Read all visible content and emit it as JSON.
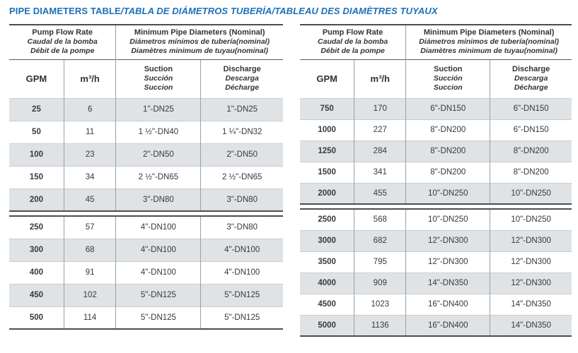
{
  "title": {
    "english": "PIPE DIAMETERS TABLE",
    "translations": "/TABLA DE DIÁMETROS TUBERÍA/TABLEAU DES DIAMÈTRES TUYAUX"
  },
  "colors": {
    "title_blue": "#1c70b8",
    "row_shading": "#dfe3e6",
    "dark_border": "#4c4d4f",
    "light_border": "#c9cdd0",
    "vertical_border": "#9ba0a4",
    "text_dark": "#39393b"
  },
  "header": {
    "flow_group": [
      "Pump Flow Rate",
      "Caudal de la bomba",
      "Débit de la pompe"
    ],
    "diameter_group": [
      "Minimum Pipe Diameters (Nominal)",
      "Diámetros mínimos de tubería(nominal)",
      "Diamètres minimum de tuyau(nominal)"
    ],
    "col_gpm": "GPM",
    "col_m3h": "m³/h",
    "col_suction": [
      "Suction",
      "Succión",
      "Succion"
    ],
    "col_discharge": [
      "Discharge",
      "Descarga",
      "Décharge"
    ]
  },
  "left_table": {
    "section1": [
      [
        "25",
        "6",
        "1\"-DN25",
        "1\"-DN25"
      ],
      [
        "50",
        "11",
        "1 ½\"-DN40",
        "1 ¼\"-DN32"
      ],
      [
        "100",
        "23",
        "2\"-DN50",
        "2\"-DN50"
      ],
      [
        "150",
        "34",
        "2 ½\"-DN65",
        "2 ½\"-DN65"
      ],
      [
        "200",
        "45",
        "3\"-DN80",
        "3\"-DN80"
      ]
    ],
    "section2": [
      [
        "250",
        "57",
        "4\"-DN100",
        "3\"-DN80"
      ],
      [
        "300",
        "68",
        "4\"-DN100",
        "4\"-DN100"
      ],
      [
        "400",
        "91",
        "4\"-DN100",
        "4\"-DN100"
      ],
      [
        "450",
        "102",
        "5\"-DN125",
        "5\"-DN125"
      ],
      [
        "500",
        "114",
        "5\"-DN125",
        "5\"-DN125"
      ]
    ]
  },
  "right_table": {
    "section1": [
      [
        "750",
        "170",
        "6\"-DN150",
        "6\"-DN150"
      ],
      [
        "1000",
        "227",
        "8\"-DN200",
        "6\"-DN150"
      ],
      [
        "1250",
        "284",
        "8\"-DN200",
        "8\"-DN200"
      ],
      [
        "1500",
        "341",
        "8\"-DN200",
        "8\"-DN200"
      ],
      [
        "2000",
        "455",
        "10\"-DN250",
        "10\"-DN250"
      ]
    ],
    "section2": [
      [
        "2500",
        "568",
        "10\"-DN250",
        "10\"-DN250"
      ],
      [
        "3000",
        "682",
        "12\"-DN300",
        "12\"-DN300"
      ],
      [
        "3500",
        "795",
        "12\"-DN300",
        "12\"-DN300"
      ],
      [
        "4000",
        "909",
        "14\"-DN350",
        "12\"-DN300"
      ],
      [
        "4500",
        "1023",
        "16\"-DN400",
        "14\"-DN350"
      ],
      [
        "5000",
        "1136",
        "16\"-DN400",
        "14\"-DN350"
      ]
    ]
  }
}
